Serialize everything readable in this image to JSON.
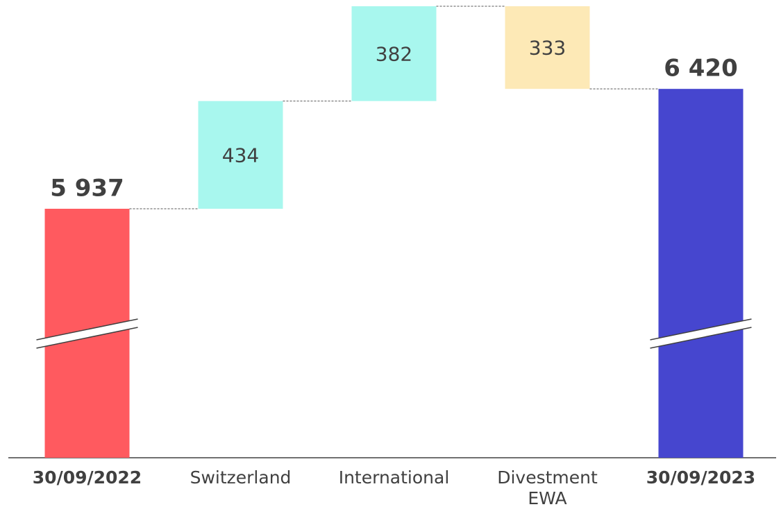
{
  "chart_data": {
    "type": "waterfall",
    "categories": [
      "30/09/2022",
      "Switzerland",
      "International",
      "Divestment EWA",
      "30/09/2023"
    ],
    "values": [
      5937,
      434,
      382,
      -333,
      6420
    ],
    "value_labels": [
      "5 937",
      "434",
      "382",
      "333",
      "6 420"
    ],
    "colors": [
      "#ff5a5f",
      "#a8f7ee",
      "#a8f7ee",
      "#fde9b6",
      "#4646cf"
    ]
  }
}
